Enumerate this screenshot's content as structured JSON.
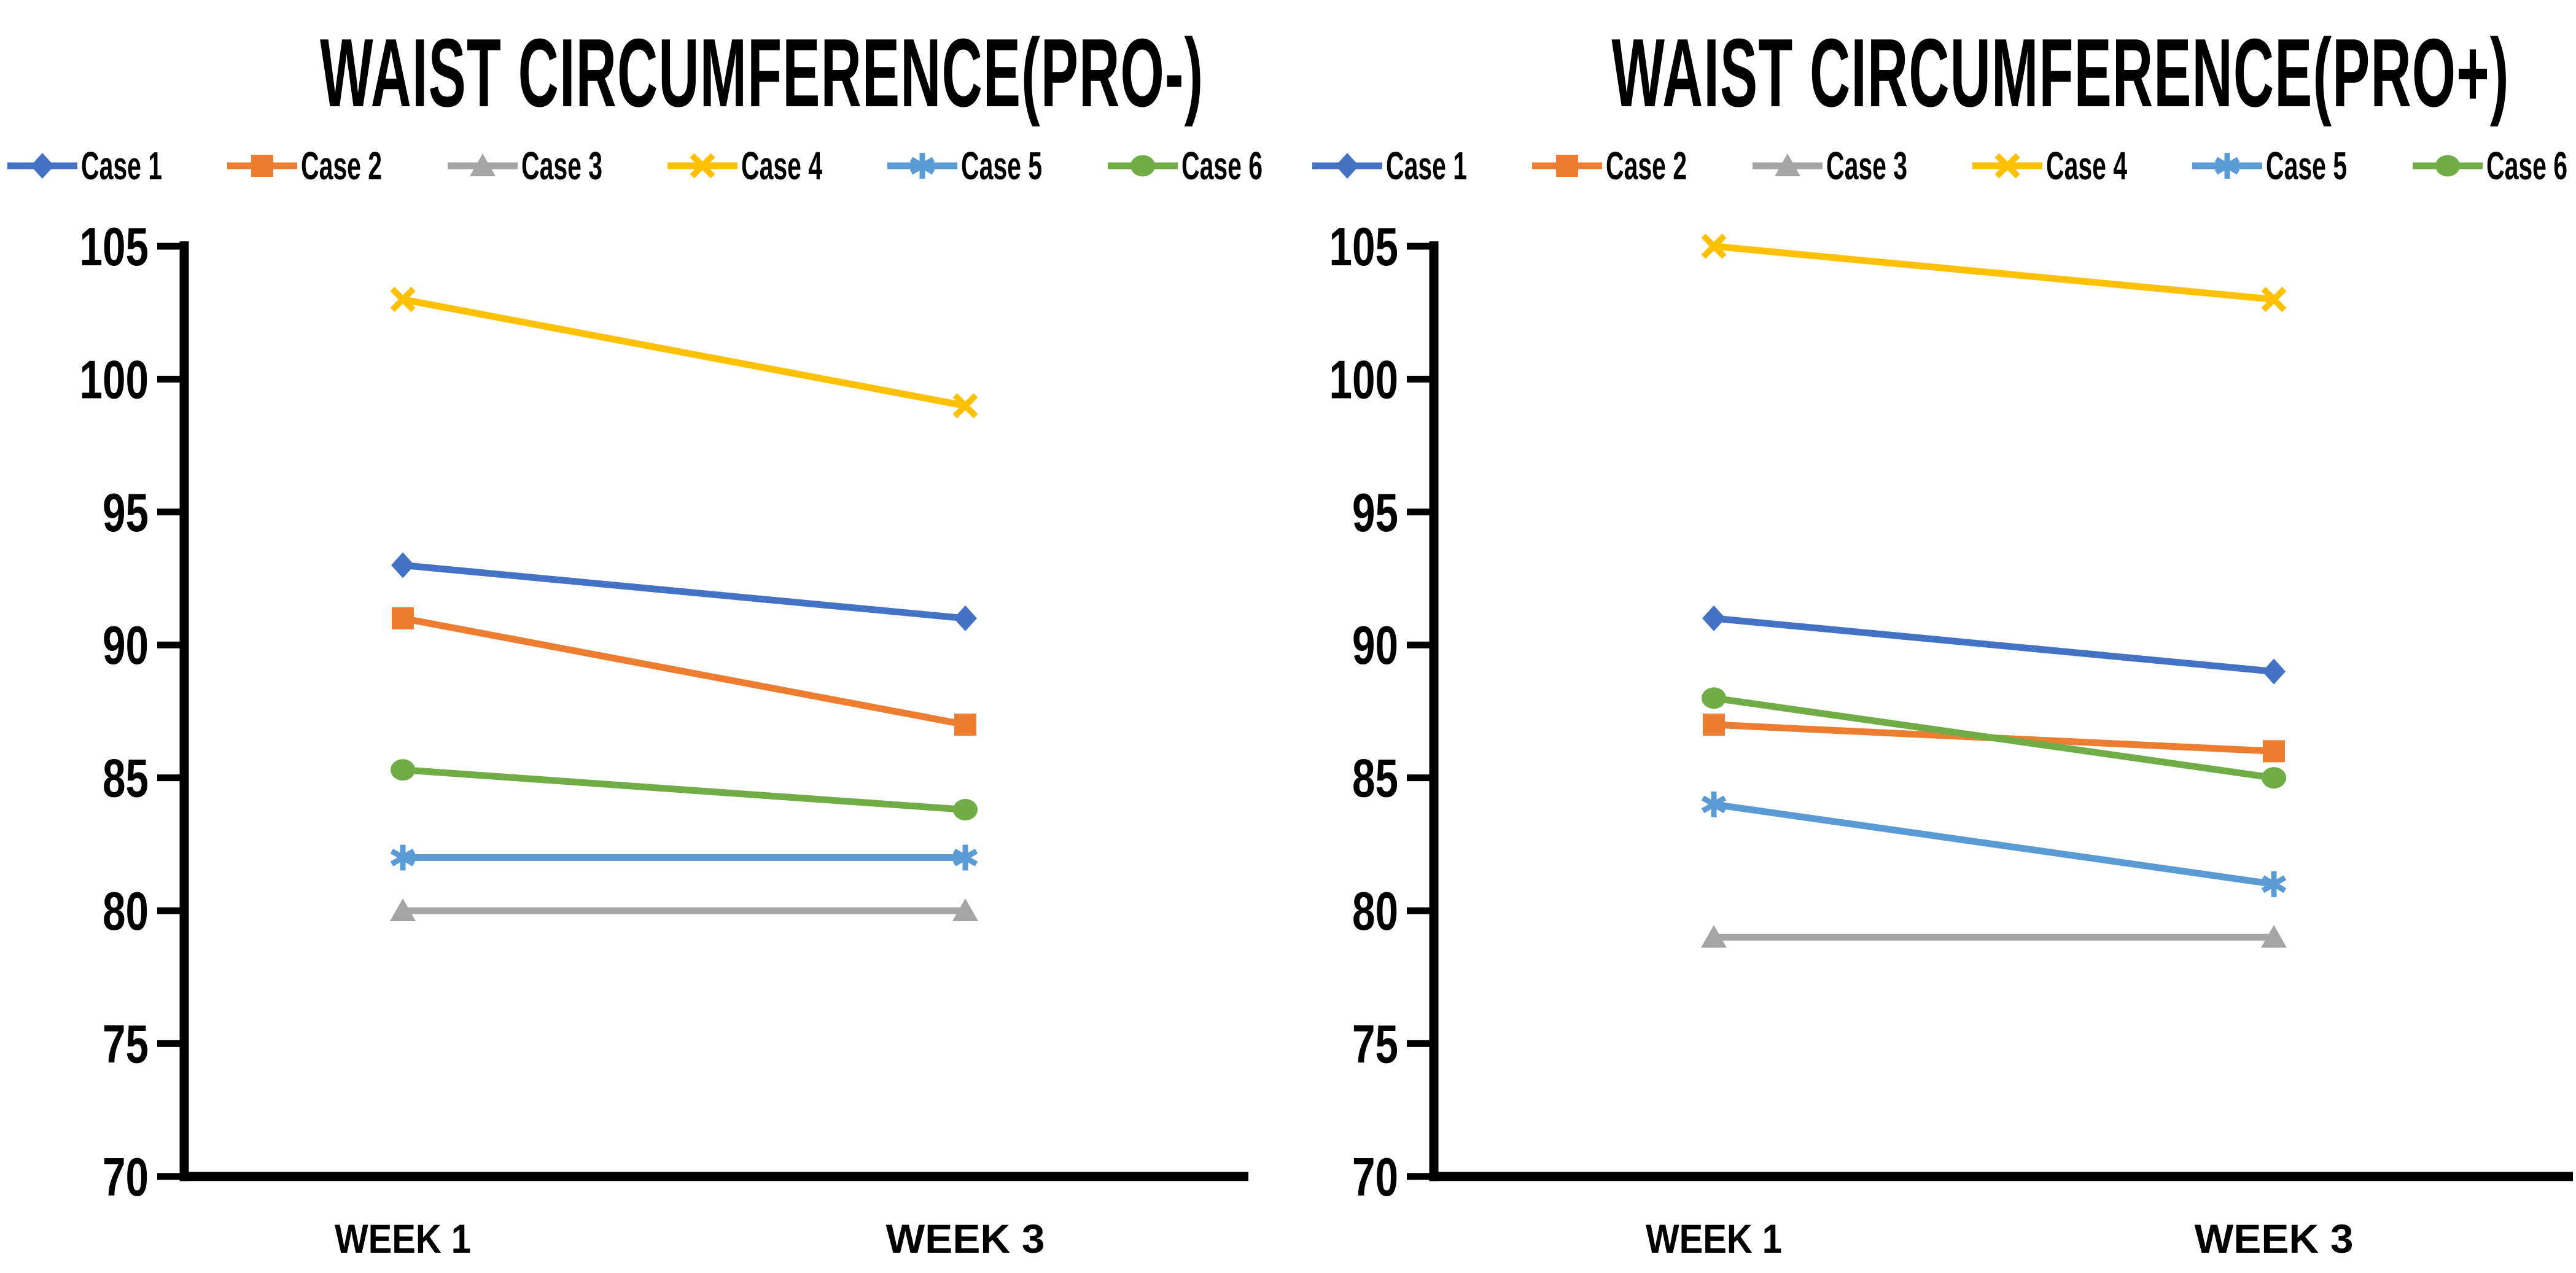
{
  "page": {
    "background": "#FFFFFF",
    "axis_color": "#000000",
    "text_color": "#000000"
  },
  "chart_data": [
    {
      "type": "line",
      "title": "WAIST CIRCUMFERENCE(PRO-)",
      "categories": [
        "WEEK 1",
        "WEEK  3"
      ],
      "xlabel": "",
      "ylabel": "",
      "ylim": [
        70,
        105
      ],
      "yticks": [
        70,
        75,
        80,
        85,
        90,
        95,
        100,
        105
      ],
      "grid": false,
      "legend_position": "top",
      "series": [
        {
          "name": "Case 1",
          "marker": "diamond",
          "color": "#4472C4",
          "values": [
            93,
            91
          ]
        },
        {
          "name": "Case 2",
          "marker": "square",
          "color": "#ED7D31",
          "values": [
            91,
            87
          ]
        },
        {
          "name": "Case 3",
          "marker": "triangle",
          "color": "#A5A5A5",
          "values": [
            80,
            80
          ]
        },
        {
          "name": "Case 4",
          "marker": "x",
          "color": "#FFC000",
          "values": [
            103,
            99
          ]
        },
        {
          "name": "Case 5",
          "marker": "asterisk",
          "color": "#5B9BD5",
          "values": [
            82,
            82
          ]
        },
        {
          "name": "Case 6",
          "marker": "circle",
          "color": "#70AD47",
          "values": [
            85.3,
            83.8
          ]
        }
      ]
    },
    {
      "type": "line",
      "title": "WAIST CIRCUMFERENCE(PRO+)",
      "categories": [
        "WEEK 1",
        "WEEK  3"
      ],
      "xlabel": "",
      "ylabel": "",
      "ylim": [
        70,
        105
      ],
      "yticks": [
        70,
        75,
        80,
        85,
        90,
        95,
        100,
        105
      ],
      "grid": false,
      "legend_position": "top",
      "series": [
        {
          "name": "Case 1",
          "marker": "diamond",
          "color": "#4472C4",
          "values": [
            91,
            89
          ]
        },
        {
          "name": "Case 2",
          "marker": "square",
          "color": "#ED7D31",
          "values": [
            87,
            86
          ]
        },
        {
          "name": "Case 3",
          "marker": "triangle",
          "color": "#A5A5A5",
          "values": [
            79,
            79
          ]
        },
        {
          "name": "Case 4",
          "marker": "x",
          "color": "#FFC000",
          "values": [
            105,
            103
          ]
        },
        {
          "name": "Case 5",
          "marker": "asterisk",
          "color": "#5B9BD5",
          "values": [
            84,
            81
          ]
        },
        {
          "name": "Case 6",
          "marker": "circle",
          "color": "#70AD47",
          "values": [
            88,
            85
          ]
        }
      ]
    }
  ]
}
